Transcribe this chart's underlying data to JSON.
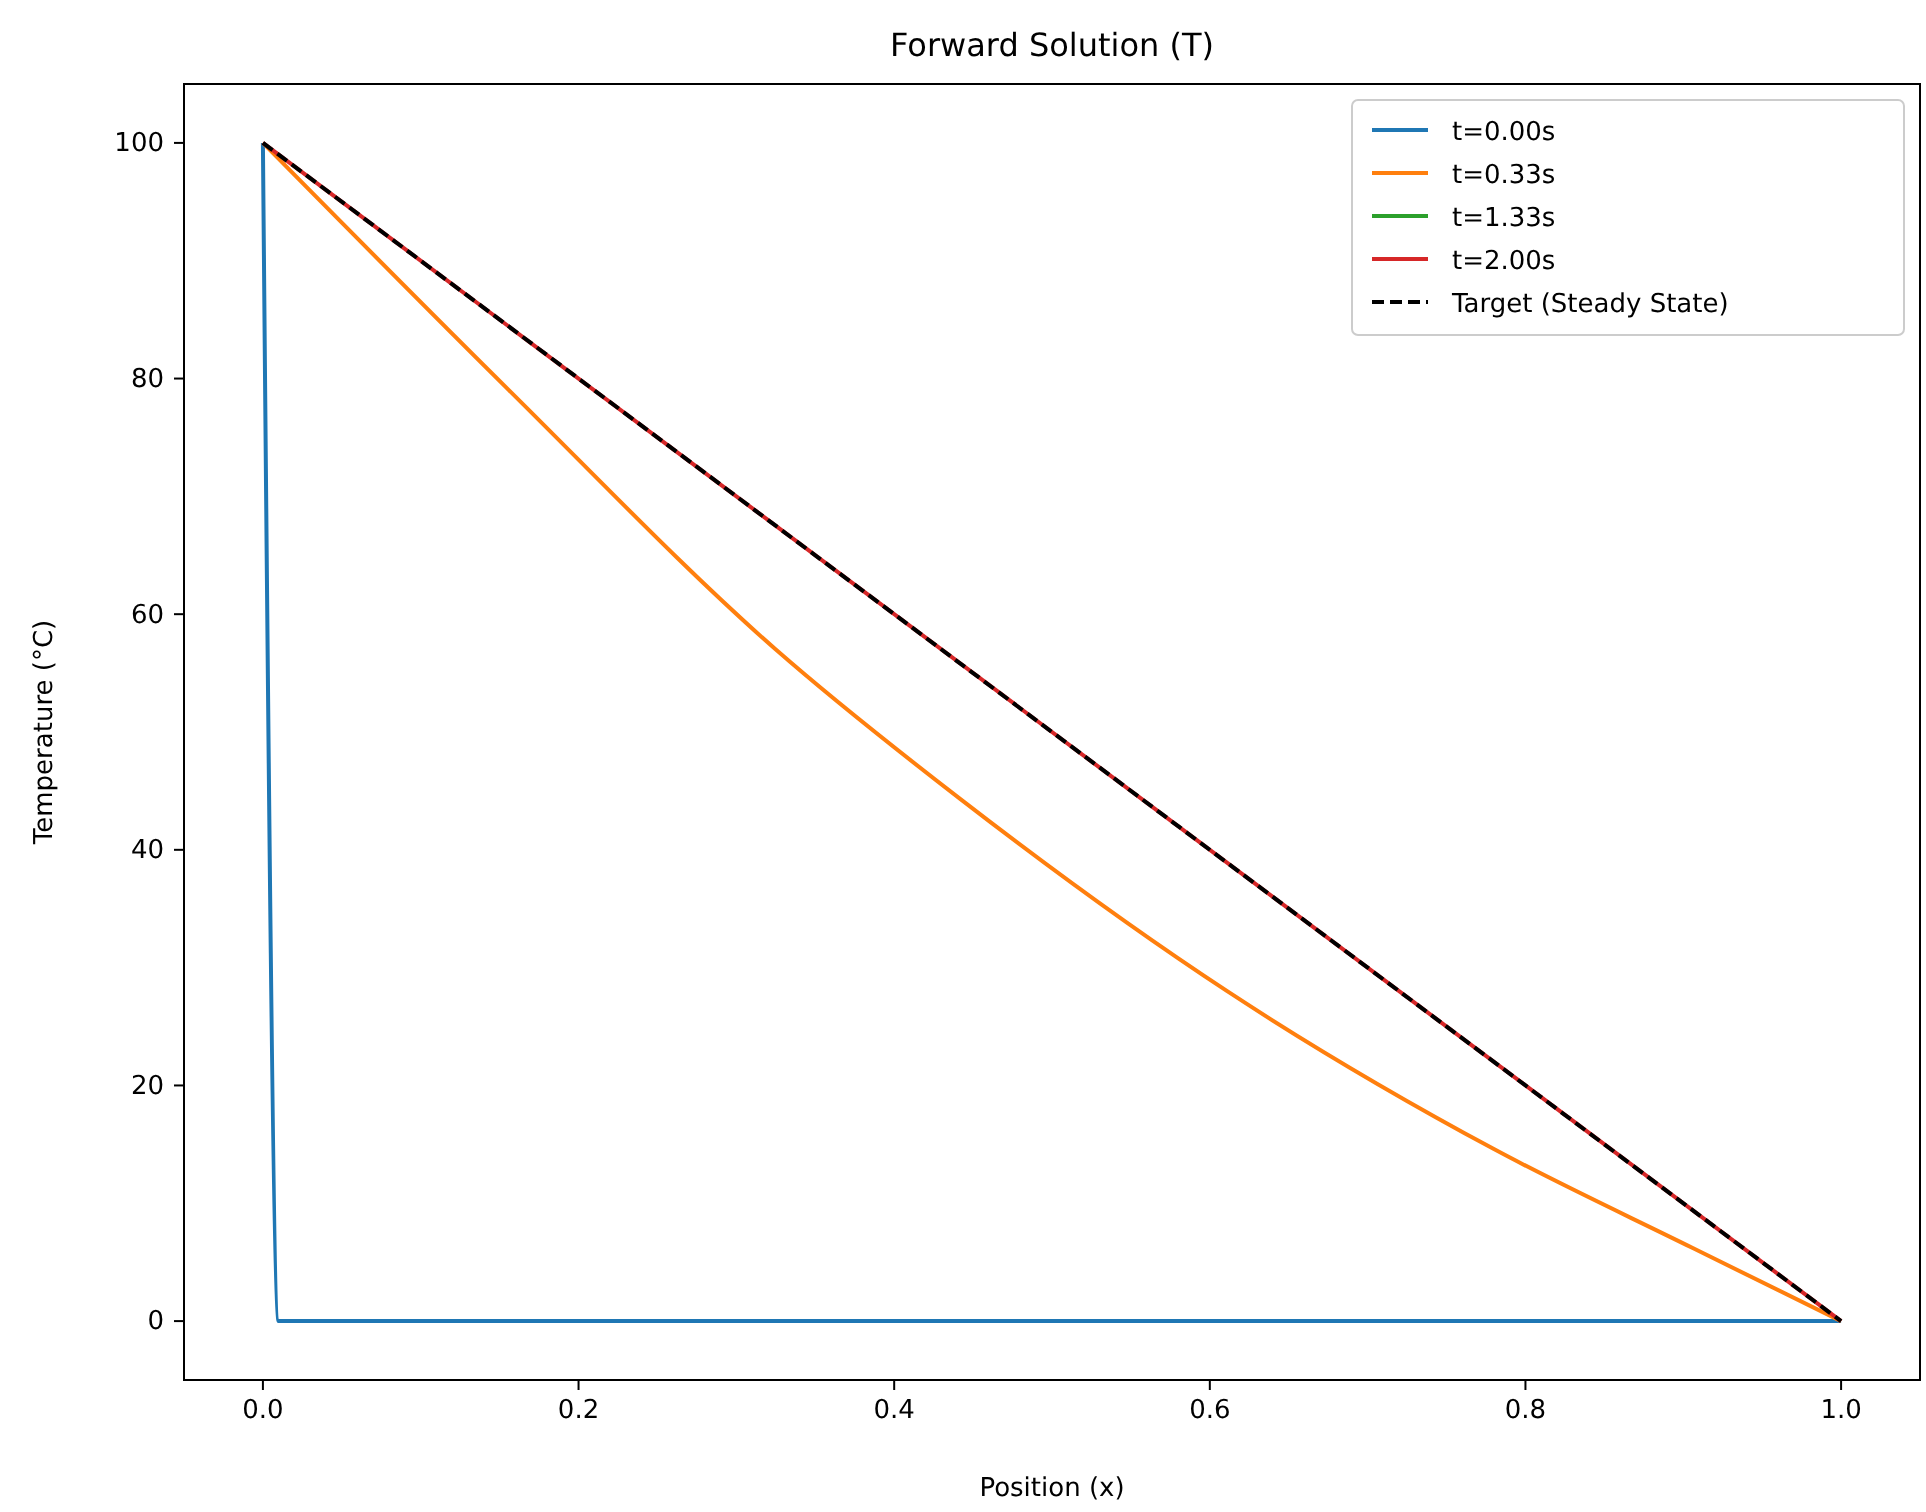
{
  "chart_data": {
    "type": "line",
    "title": "Forward Solution (T)",
    "xlabel": "Position (x)",
    "ylabel": "Temperature (°C)",
    "xlim": [
      -0.05,
      1.05
    ],
    "ylim": [
      -5,
      105
    ],
    "xticks": [
      {
        "value": 0,
        "label": "0.0"
      },
      {
        "value": 0.2,
        "label": "0.2"
      },
      {
        "value": 0.4,
        "label": "0.4"
      },
      {
        "value": 0.6,
        "label": "0.6"
      },
      {
        "value": 0.8,
        "label": "0.8"
      },
      {
        "value": 1,
        "label": "1.0"
      }
    ],
    "yticks": [
      0,
      20,
      40,
      60,
      80,
      100
    ],
    "legend": "top right",
    "grid": false,
    "marker": "none",
    "series": [
      {
        "name": "t=0.00s",
        "color": "#1f77b4",
        "x": [
          0,
          0.01,
          1
        ],
        "values": [
          100,
          0,
          0
        ]
      },
      {
        "name": "t=0.33s",
        "color": "#ff7f0e",
        "x": [
          0,
          0.156,
          0.325,
          0.442,
          0.611,
          0.78,
          0.906,
          1
        ],
        "values": [
          100,
          79,
          57,
          44.3,
          28,
          14.6,
          6.2,
          0
        ]
      },
      {
        "name": "t=1.33s",
        "color": "#2ca02c"
      },
      {
        "name": "t=2.00s",
        "color": "#d62728",
        "x": [
          0,
          1
        ],
        "values": [
          100,
          0
        ]
      },
      {
        "name": "Target (Steady State)",
        "color": "#000000",
        "line_style": "dashed",
        "x": [
          0,
          1
        ],
        "values": [
          100,
          0
        ]
      }
    ]
  }
}
